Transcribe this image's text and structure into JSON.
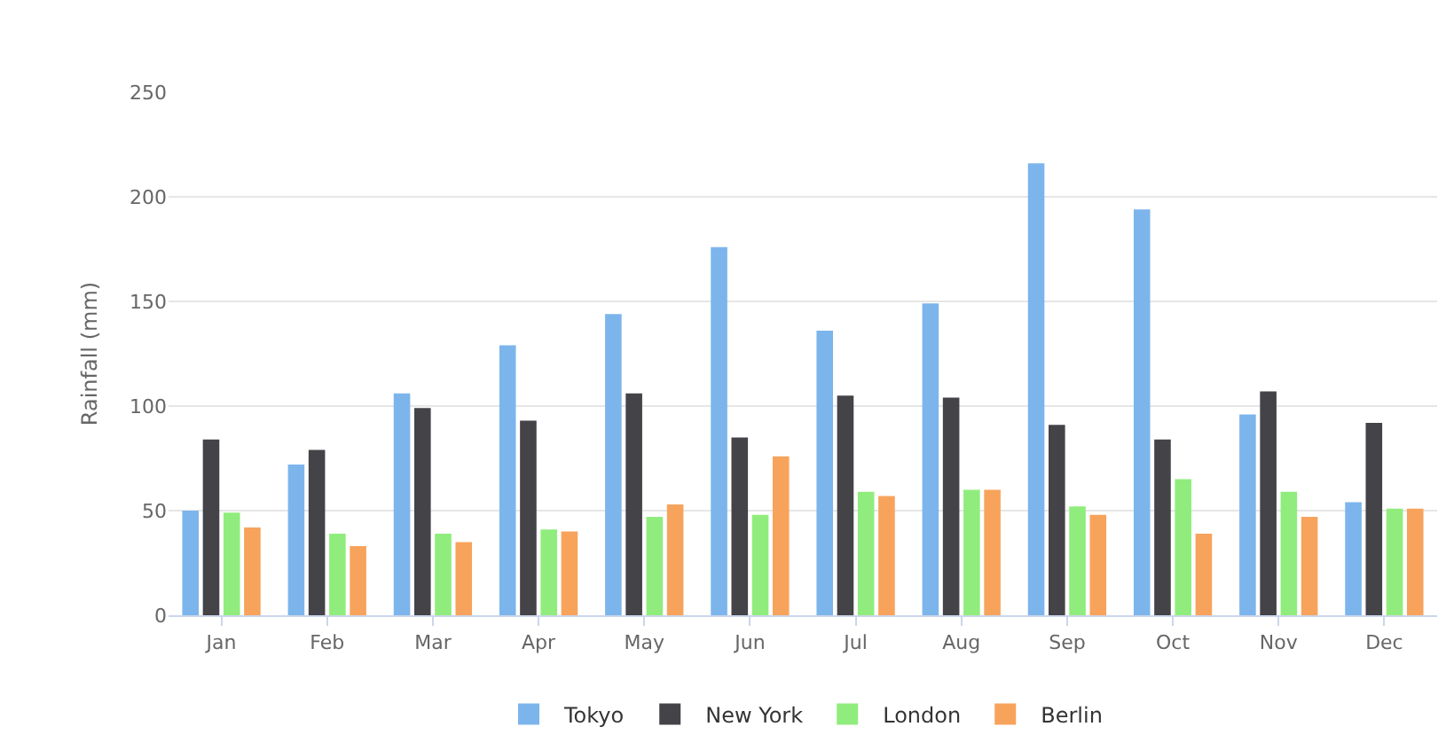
{
  "chart_data": {
    "type": "bar",
    "ylabel": "Rainfall (mm)",
    "categories": [
      "Jan",
      "Feb",
      "Mar",
      "Apr",
      "May",
      "Jun",
      "Jul",
      "Aug",
      "Sep",
      "Oct",
      "Nov",
      "Dec"
    ],
    "series": [
      {
        "name": "Tokyo",
        "color": "#7cb5ec",
        "values": [
          50,
          72,
          106,
          129,
          144,
          176,
          136,
          149,
          216,
          194,
          96,
          54
        ]
      },
      {
        "name": "New York",
        "color": "#434348",
        "values": [
          84,
          79,
          99,
          93,
          106,
          85,
          105,
          104,
          91,
          84,
          107,
          92
        ]
      },
      {
        "name": "London",
        "color": "#90ed7d",
        "values": [
          49,
          39,
          39,
          41,
          47,
          48,
          59,
          60,
          52,
          65,
          59,
          51
        ]
      },
      {
        "name": "Berlin",
        "color": "#f7a35c",
        "values": [
          42,
          33,
          35,
          40,
          53,
          76,
          57,
          60,
          48,
          39,
          47,
          51
        ]
      }
    ],
    "ylim": [
      0,
      250
    ],
    "yticks": [
      0,
      50,
      100,
      150,
      200,
      250
    ],
    "grid": "y",
    "legend": "bottom"
  }
}
